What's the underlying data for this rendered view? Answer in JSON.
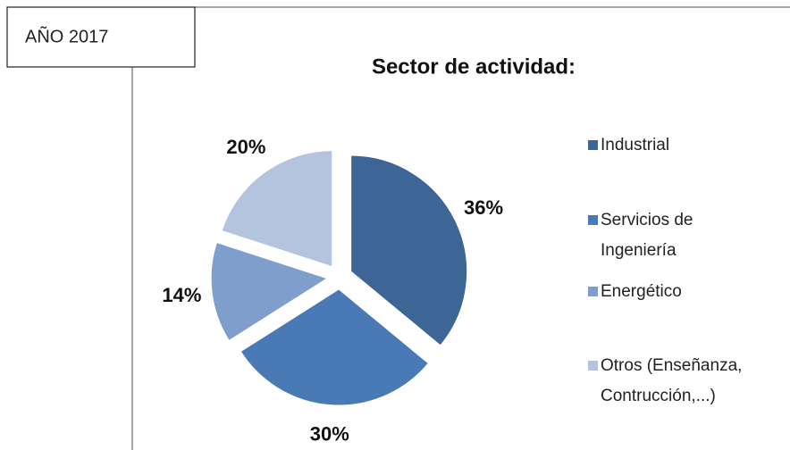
{
  "chart_data": {
    "type": "pie",
    "title": "Sector de actividad:",
    "annotation": "AÑO 2017",
    "categories": [
      "Industrial",
      "Servicios de Ingeniería",
      "Energético",
      "Otros (Enseñanza, Contrucción,...)"
    ],
    "values": [
      36,
      30,
      14,
      20
    ],
    "value_labels": [
      "36%",
      "30%",
      "14%",
      "20%"
    ],
    "colors": [
      "#3d6595",
      "#4a7ab5",
      "#7f9ecb",
      "#b5c4de"
    ],
    "legend": "right"
  }
}
